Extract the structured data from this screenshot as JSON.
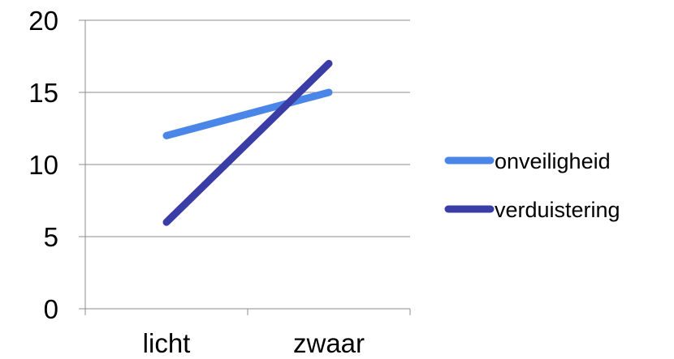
{
  "chart_data": {
    "type": "line",
    "title": "",
    "xlabel": "",
    "ylabel": "",
    "categories": [
      "licht",
      "zwaar"
    ],
    "ylim": [
      0,
      20
    ],
    "yticks": [
      "0",
      "5",
      "10",
      "15",
      "20"
    ],
    "grid": "horizontal",
    "legend_position": "right",
    "series": [
      {
        "name": "onveiligheid",
        "values": [
          12,
          15
        ],
        "color": "#4a86e8"
      },
      {
        "name": "verduistering",
        "values": [
          6,
          17
        ],
        "color": "#3b3da6"
      }
    ]
  }
}
